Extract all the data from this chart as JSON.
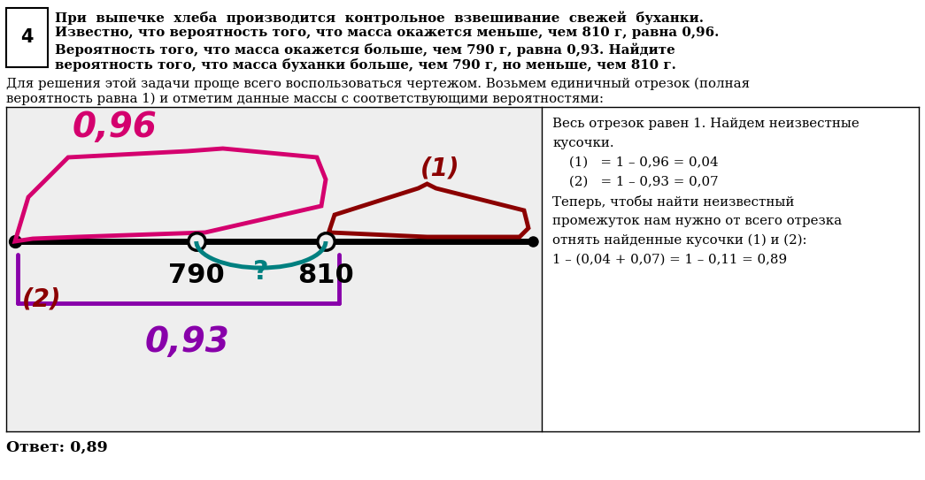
{
  "problem_number": "4",
  "problem_lines": [
    "При  выпечке  хлеба  производится  контрольное  взвешивание  свежей  буханки.",
    "Известно, что вероятность того, что масса окажется меньше, чем 810 г, равна 0,96.",
    "Вероятность того, что масса окажется больше, чем 790 г, равна 0,93. Найдите",
    "вероятность того, что масса буханки больше, чем 790 г, но меньше, чем 810 г."
  ],
  "intro_lines": [
    "Для решения этой задачи проще всего воспользоваться чертежом. Возьмем единичный отрезок (полная",
    "вероятность равна 1) и отметим данные массы с соответствующими вероятностями:"
  ],
  "right_panel_lines": [
    "Весь отрезок равен 1. Найдем неизвестные",
    "кусочки.",
    "    (1)   = 1 – 0,96 = 0,04",
    "    (2)   = 1 – 0,93 = 0,07",
    "Теперь, чтобы найти неизвестный",
    "промежуток нам нужно от всего отрезка",
    "отнять найденные кусочки (1) и (2):",
    "1 – (0,04 + 0,07) = 1 – 0,11 = 0,89"
  ],
  "answer_text": "Ответ: 0,89",
  "label_096": "0,96",
  "label_093": "0,93",
  "label_1": "(1)",
  "label_2": "(2)",
  "label_790": "790",
  "label_810": "810",
  "label_q": "?",
  "pink_color": "#d4006e",
  "red_color": "#8b0000",
  "teal_color": "#008080",
  "purple_color": "#8800aa",
  "black": "#000000",
  "bg_color": "#ffffff",
  "panel_bg": "#eeeeee"
}
